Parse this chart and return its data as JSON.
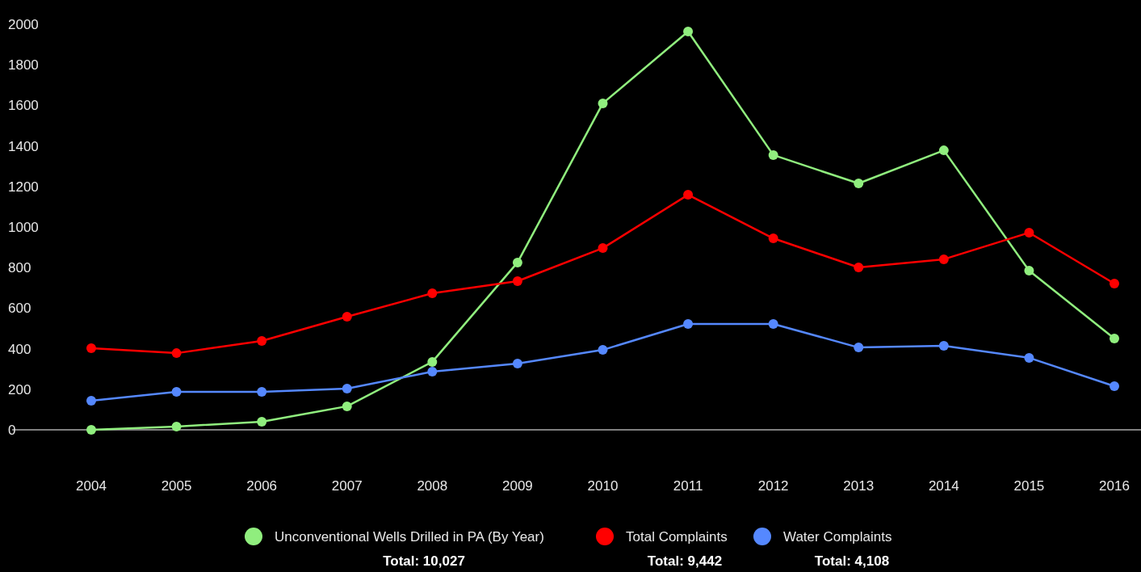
{
  "chart_data": {
    "type": "line",
    "categories": [
      "2004",
      "2005",
      "2006",
      "2007",
      "2008",
      "2009",
      "2010",
      "2011",
      "2012",
      "2013",
      "2014",
      "2015",
      "2016"
    ],
    "series": [
      {
        "name": "Unconventional Wells Drilled in PA (By Year)",
        "color": "#90ee7e",
        "values": [
          0,
          16,
          40,
          116,
          335,
          825,
          1610,
          1964,
          1355,
          1215,
          1378,
          785,
          450
        ]
      },
      {
        "name": "Total Complaints",
        "color": "#ff0000",
        "values": [
          402,
          378,
          438,
          558,
          673,
          733,
          896,
          1159,
          944,
          801,
          841,
          972,
          721
        ]
      },
      {
        "name": "Water Complaints",
        "color": "#5588ff",
        "values": [
          143,
          187,
          187,
          203,
          287,
          327,
          394,
          522,
          522,
          406,
          414,
          355,
          215
        ]
      }
    ],
    "ylim": [
      0,
      2000
    ],
    "yticks": [
      0,
      200,
      400,
      600,
      800,
      1000,
      1200,
      1400,
      1600,
      1800,
      2000
    ],
    "grid": false,
    "legend": "bottom",
    "marker": "circle",
    "line_style": "solid",
    "annotations": [
      "Total: 10,027",
      "Total: 9,442",
      "Total: 4,108"
    ]
  }
}
